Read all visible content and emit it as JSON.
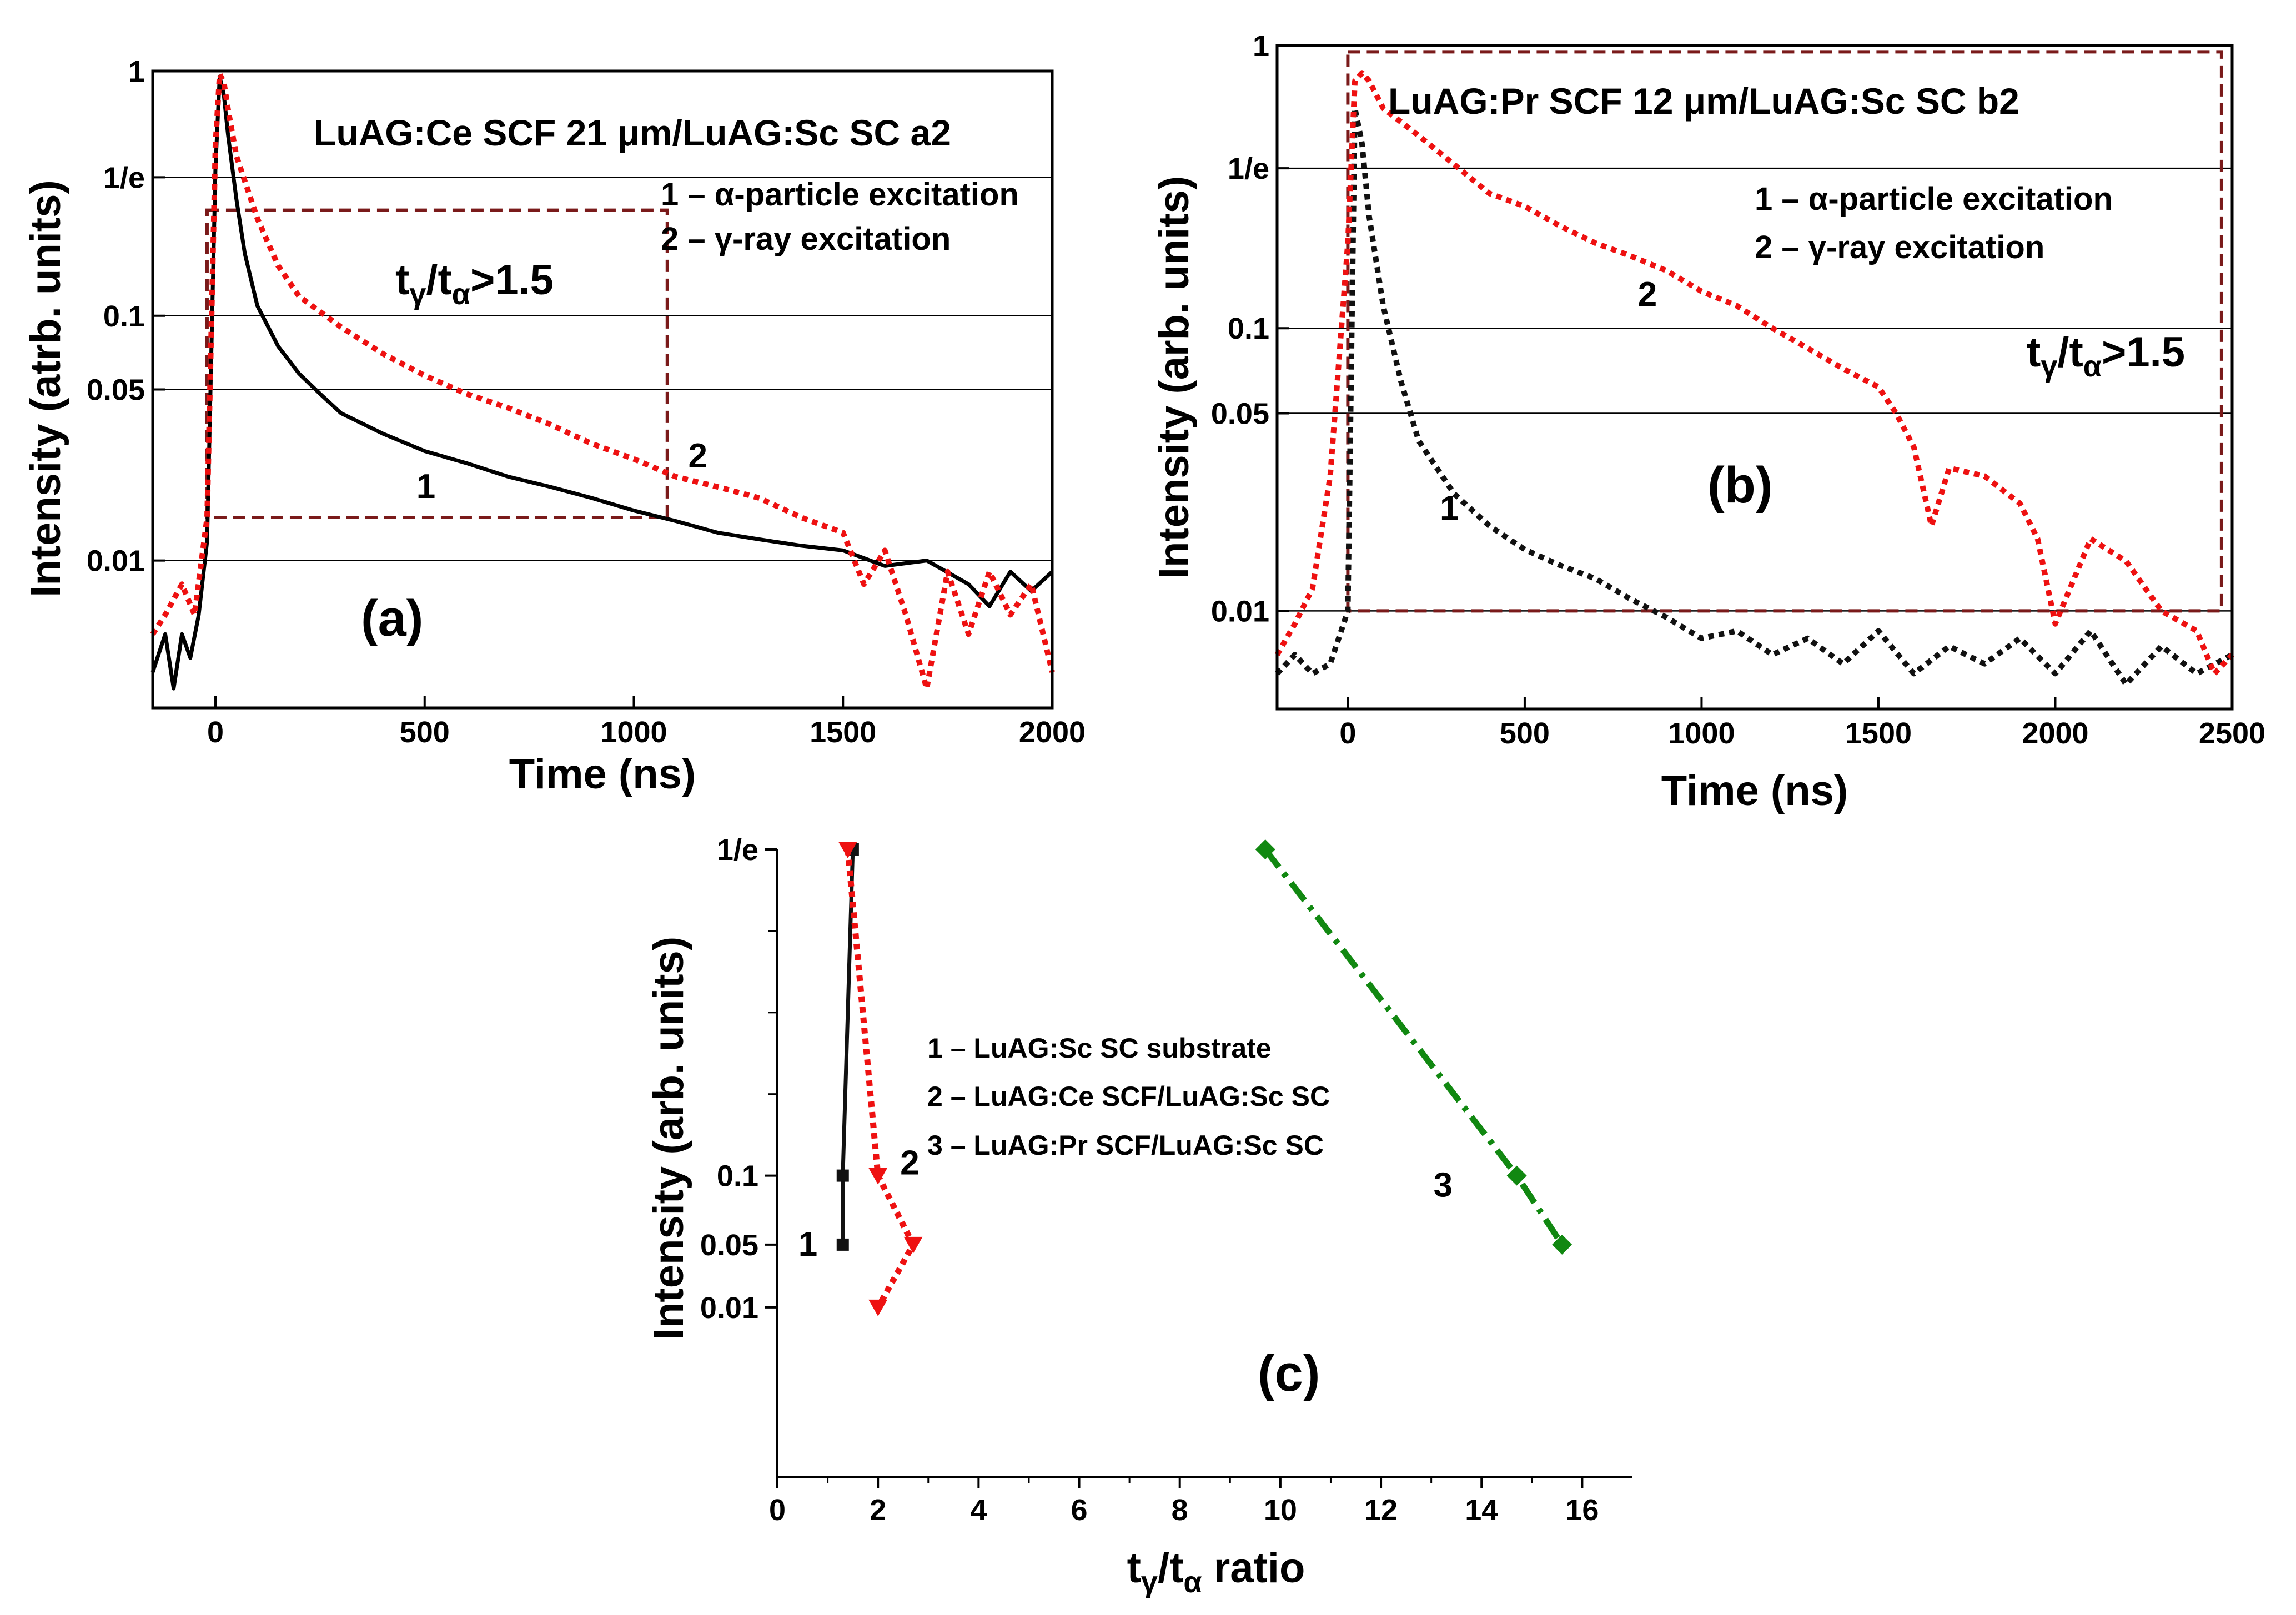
{
  "chart_data": [
    {
      "panel": "a",
      "type": "line",
      "title": "LuAG:Ce SCF 21 μm/LuAG:Sc SC a2",
      "panel_label": "(a)",
      "xlabel": "Time (ns)",
      "ylabel": "Intensity (atrb. units)",
      "xlim": [
        -150,
        2000
      ],
      "ylim": [
        0.0025,
        1
      ],
      "yscale": "log",
      "xticks": [
        0,
        500,
        1000,
        1500,
        2000
      ],
      "yticks": [
        {
          "value": 1,
          "label": "1"
        },
        {
          "value": 0.3679,
          "label": "1/e"
        },
        {
          "value": 0.1,
          "label": "0.1"
        },
        {
          "value": 0.05,
          "label": "0.05"
        },
        {
          "value": 0.01,
          "label": "0.01"
        }
      ],
      "hlines": [
        0.3679,
        0.1,
        0.05,
        0.01
      ],
      "legend": [
        "1 – α-particle excitation",
        "2 – γ-ray excitation"
      ],
      "annotation_ratio": {
        "main": "t",
        "sub1": "γ",
        "mid": "/t",
        "sub2": "α",
        "tail": ">1.5"
      },
      "box": {
        "x": [
          -20,
          1080
        ],
        "y": [
          0.015,
          0.27
        ]
      },
      "curve_labels": [
        {
          "text": "1",
          "x": 480,
          "y": 0.018
        },
        {
          "text": "2",
          "x": 1130,
          "y": 0.024
        }
      ],
      "series": [
        {
          "name": "1",
          "label": "1",
          "color": "#000000",
          "style": "solid",
          "x": [
            -150,
            -120,
            -100,
            -80,
            -60,
            -40,
            -20,
            0,
            10,
            20,
            30,
            50,
            70,
            100,
            150,
            200,
            250,
            300,
            400,
            500,
            600,
            700,
            800,
            900,
            1000,
            1100,
            1200,
            1300,
            1400,
            1500,
            1600,
            1700,
            1800,
            1850,
            1900,
            1950,
            2000
          ],
          "y": [
            0.0035,
            0.005,
            0.003,
            0.005,
            0.004,
            0.006,
            0.012,
            0.4,
            0.95,
            0.8,
            0.55,
            0.3,
            0.18,
            0.11,
            0.075,
            0.058,
            0.048,
            0.04,
            0.033,
            0.028,
            0.025,
            0.022,
            0.02,
            0.018,
            0.016,
            0.0145,
            0.013,
            0.0122,
            0.0115,
            0.011,
            0.0095,
            0.01,
            0.008,
            0.0065,
            0.009,
            0.0075,
            0.009
          ]
        },
        {
          "name": "2",
          "label": "2",
          "color": "#ee1111",
          "style": "dotted",
          "x": [
            -150,
            -120,
            -80,
            -50,
            -20,
            0,
            10,
            20,
            30,
            50,
            100,
            150,
            200,
            300,
            400,
            500,
            600,
            700,
            800,
            900,
            1000,
            1100,
            1200,
            1300,
            1400,
            1500,
            1550,
            1600,
            1650,
            1700,
            1750,
            1800,
            1850,
            1900,
            1950,
            2000
          ],
          "y": [
            0.005,
            0.006,
            0.008,
            0.006,
            0.015,
            0.5,
            0.97,
            0.9,
            0.7,
            0.45,
            0.25,
            0.16,
            0.12,
            0.09,
            0.07,
            0.057,
            0.048,
            0.042,
            0.036,
            0.03,
            0.026,
            0.022,
            0.02,
            0.018,
            0.015,
            0.013,
            0.008,
            0.011,
            0.006,
            0.003,
            0.009,
            0.005,
            0.009,
            0.006,
            0.008,
            0.0035
          ]
        }
      ]
    },
    {
      "panel": "b",
      "type": "line",
      "title": "LuAG:Pr SCF 12 μm/LuAG:Sc SC b2",
      "panel_label": "(b)",
      "xlabel": "Time (ns)",
      "ylabel": "Intensity (arb. units)",
      "xlim": [
        -200,
        2500
      ],
      "ylim": [
        0.0045,
        1
      ],
      "yscale": "log",
      "xticks": [
        0,
        500,
        1000,
        1500,
        2000,
        2500
      ],
      "yticks": [
        {
          "value": 1,
          "label": "1"
        },
        {
          "value": 0.3679,
          "label": "1/e"
        },
        {
          "value": 0.1,
          "label": "0.1"
        },
        {
          "value": 0.05,
          "label": "0.05"
        },
        {
          "value": 0.01,
          "label": "0.01"
        }
      ],
      "hlines": [
        0.3679,
        0.1,
        0.05,
        0.01
      ],
      "legend": [
        "1 – α-particle excitation",
        "2 – γ-ray excitation"
      ],
      "annotation_ratio": {
        "main": "t",
        "sub1": "γ",
        "mid": "/t",
        "sub2": "α",
        "tail": ">1.5"
      },
      "box": {
        "x": [
          0,
          2470
        ],
        "y": [
          0.01,
          0.95
        ]
      },
      "curve_labels": [
        {
          "text": "1",
          "x": 260,
          "y": 0.021
        },
        {
          "text": "2",
          "x": 820,
          "y": 0.12
        }
      ],
      "series": [
        {
          "name": "1",
          "label": "1",
          "color": "#111111",
          "style": "dotted",
          "x": [
            -200,
            -150,
            -100,
            -50,
            0,
            20,
            40,
            60,
            100,
            150,
            200,
            300,
            400,
            500,
            600,
            700,
            800,
            900,
            1000,
            1100,
            1200,
            1300,
            1400,
            1500,
            1600,
            1700,
            1800,
            1900,
            2000,
            2100,
            2200,
            2300,
            2400,
            2500
          ],
          "y": [
            0.006,
            0.007,
            0.006,
            0.0065,
            0.01,
            0.6,
            0.45,
            0.25,
            0.12,
            0.065,
            0.04,
            0.026,
            0.02,
            0.0165,
            0.0145,
            0.013,
            0.011,
            0.0095,
            0.008,
            0.0085,
            0.007,
            0.008,
            0.0065,
            0.0085,
            0.006,
            0.0075,
            0.0065,
            0.008,
            0.006,
            0.0085,
            0.0055,
            0.0075,
            0.006,
            0.007
          ]
        },
        {
          "name": "2",
          "label": "2",
          "color": "#ee1111",
          "style": "dotted",
          "x": [
            -200,
            -150,
            -100,
            -50,
            0,
            20,
            40,
            60,
            100,
            200,
            300,
            400,
            500,
            600,
            700,
            800,
            900,
            1000,
            1100,
            1200,
            1300,
            1400,
            1500,
            1550,
            1600,
            1650,
            1700,
            1800,
            1900,
            1950,
            2000,
            2100,
            2200,
            2300,
            2400,
            2450,
            2500
          ],
          "y": [
            0.007,
            0.009,
            0.012,
            0.03,
            0.2,
            0.75,
            0.8,
            0.75,
            0.6,
            0.48,
            0.38,
            0.3,
            0.27,
            0.23,
            0.2,
            0.18,
            0.16,
            0.135,
            0.12,
            0.1,
            0.085,
            0.072,
            0.062,
            0.05,
            0.038,
            0.02,
            0.032,
            0.03,
            0.024,
            0.018,
            0.009,
            0.018,
            0.015,
            0.01,
            0.0085,
            0.006,
            0.007
          ]
        }
      ]
    },
    {
      "panel": "c",
      "type": "line",
      "panel_label": "(c)",
      "xlabel": "tγ/tα ratio",
      "xlabel_parts": {
        "main": "t",
        "sub1": "γ",
        "mid": "/t",
        "sub2": "α",
        "tail": " ratio"
      },
      "ylabel": "Intensity (arb. units)",
      "xlim": [
        0,
        17
      ],
      "xticks": [
        0,
        2,
        4,
        6,
        8,
        10,
        12,
        14,
        16
      ],
      "yticks": [
        {
          "value": 0.3679,
          "label": "1/e"
        },
        {
          "value": 0.1,
          "label": "0.1"
        },
        {
          "value": 0.05,
          "label": "0.05"
        },
        {
          "value": 0.01,
          "label": "0.01"
        }
      ],
      "y_categories_note": "y axis is categorical (levels 1/e, 0.1, 0.05, 0.01 spaced non-uniformly)",
      "y_level_pos": {
        "0.3679": 0.0,
        "0.1": 0.52,
        "0.05": 0.63,
        "0.01": 0.73
      },
      "minor_y_ticks": [
        0.13,
        0.26,
        0.39
      ],
      "legend": [
        "1 – LuAG:Sc SC substrate",
        "2 – LuAG:Ce SCF/LuAG:Sc SC",
        "3 – LuAG:Pr SCF/LuAG:Sc SC"
      ],
      "curve_labels": [
        {
          "text": "1",
          "series": 0
        },
        {
          "text": "2",
          "series": 1
        },
        {
          "text": "3",
          "series": 2
        }
      ],
      "series": [
        {
          "name": "1",
          "label": "LuAG:Sc SC substrate",
          "color": "#111111",
          "style": "solid",
          "marker": "square",
          "x": [
            1.5,
            1.3,
            1.3
          ],
          "y": [
            0.3679,
            0.1,
            0.05
          ]
        },
        {
          "name": "2",
          "label": "LuAG:Ce SCF/LuAG:Sc SC",
          "color": "#ee1111",
          "style": "dotted",
          "marker": "triangle-down",
          "x": [
            1.4,
            2.0,
            2.7,
            2.0
          ],
          "y": [
            0.3679,
            0.1,
            0.05,
            0.01
          ]
        },
        {
          "name": "3",
          "label": "LuAG:Pr SCF/LuAG:Sc SC",
          "color": "#118811",
          "style": "dashdot",
          "marker": "diamond",
          "x": [
            9.7,
            14.7,
            15.6
          ],
          "y": [
            0.3679,
            0.1,
            0.05
          ]
        }
      ]
    }
  ]
}
